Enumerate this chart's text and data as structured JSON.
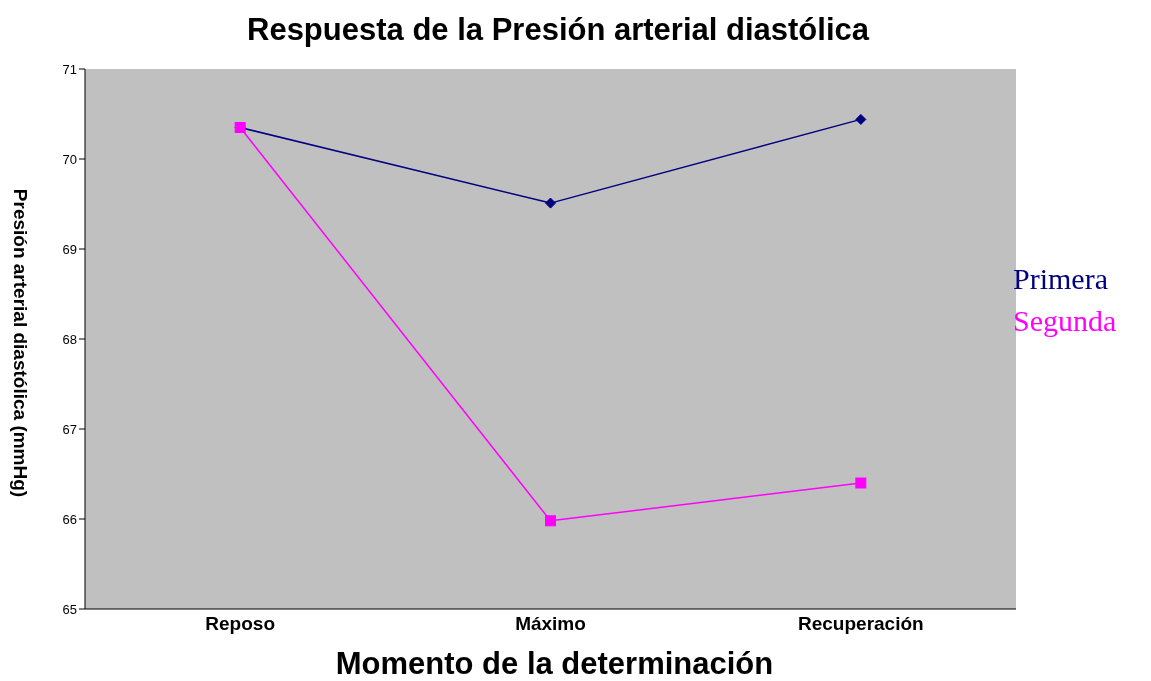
{
  "chart_data": {
    "type": "line",
    "title": "Respuesta de la Presión arterial diastólica",
    "xlabel": "Momento de la determinación",
    "ylabel": "Presión arterial diastólica (mmHg)",
    "categories": [
      "Reposo",
      "Máximo",
      "Recuperación"
    ],
    "series": [
      {
        "name": "Primera",
        "color": "#000080",
        "values": [
          70.35,
          69.51,
          70.44
        ],
        "marker": "diamond"
      },
      {
        "name": "Segunda",
        "color": "#ff00ff",
        "values": [
          70.35,
          65.98,
          66.4
        ],
        "marker": "square"
      }
    ],
    "ylim": [
      65,
      71
    ],
    "yticks": [
      65,
      66,
      67,
      68,
      69,
      70,
      71
    ],
    "grid": false,
    "legend": "right",
    "line_style": "solid"
  }
}
